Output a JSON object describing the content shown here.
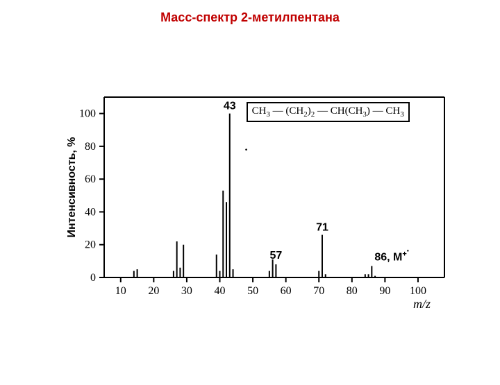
{
  "title": "Масс-спектр 2-метилпентана",
  "title_color": "#c00000",
  "chart": {
    "type": "mass-spectrum",
    "background_color": "#ffffff",
    "axis_color": "#000000",
    "axis_width": 2,
    "peak_color": "#000000",
    "peak_width": 2,
    "x_axis": {
      "label": "m/z",
      "min": 5,
      "max": 108,
      "ticks": [
        10,
        20,
        30,
        40,
        50,
        60,
        70,
        80,
        90,
        100
      ],
      "tick_fontsize": 16
    },
    "y_axis": {
      "label": "Интенсивность, %",
      "min": 0,
      "max": 110,
      "ticks": [
        0,
        20,
        40,
        60,
        80,
        100
      ],
      "tick_fontsize": 16
    },
    "peaks": [
      {
        "mz": 14,
        "intensity": 4
      },
      {
        "mz": 15,
        "intensity": 5
      },
      {
        "mz": 26,
        "intensity": 4
      },
      {
        "mz": 27,
        "intensity": 22
      },
      {
        "mz": 28,
        "intensity": 6
      },
      {
        "mz": 29,
        "intensity": 20
      },
      {
        "mz": 39,
        "intensity": 14
      },
      {
        "mz": 40,
        "intensity": 4
      },
      {
        "mz": 41,
        "intensity": 53
      },
      {
        "mz": 42,
        "intensity": 46
      },
      {
        "mz": 43,
        "intensity": 100
      },
      {
        "mz": 44,
        "intensity": 5
      },
      {
        "mz": 55,
        "intensity": 4
      },
      {
        "mz": 56,
        "intensity": 11
      },
      {
        "mz": 57,
        "intensity": 8
      },
      {
        "mz": 70,
        "intensity": 4
      },
      {
        "mz": 71,
        "intensity": 26
      },
      {
        "mz": 72,
        "intensity": 2
      },
      {
        "mz": 84,
        "intensity": 2
      },
      {
        "mz": 85,
        "intensity": 2
      },
      {
        "mz": 86,
        "intensity": 7
      },
      {
        "mz": 87,
        "intensity": 1
      }
    ],
    "peak_labels": [
      {
        "mz": 43,
        "text": "43"
      },
      {
        "mz": 57,
        "text": "57"
      },
      {
        "mz": 71,
        "text": "71"
      },
      {
        "mz": 86,
        "text": "86, M⁺"
      }
    ],
    "formula_html": "CH<sub>3</sub> — (CH<sub>2</sub>)<sub>2</sub> — CH(CH<sub>3</sub>) — CH<sub>3</sub>"
  }
}
